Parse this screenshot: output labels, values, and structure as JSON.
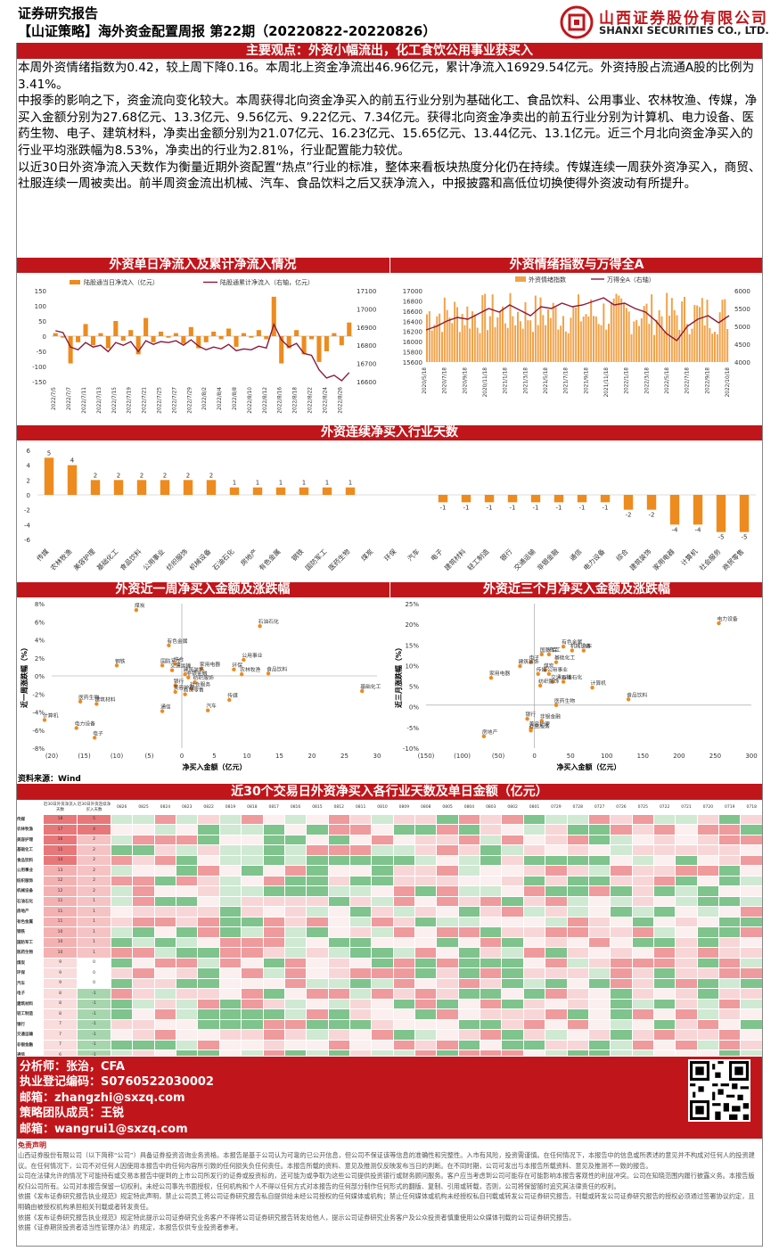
{
  "header": {
    "report_type": "证券研究报告",
    "report_title": "【山证策略】海外资金配置周报 第22期（20220822-20220826）",
    "company_cn": "山西证券股份有限公司",
    "company_en": "SHANXI SECURITIES CO., LTD."
  },
  "summary": {
    "title": "主要观点：外资小幅流出，化工食饮公用事业获买入",
    "paragraphs": [
      "本周外资情绪指数为0.42，较上周下降0.16。本周北上资金净流出46.96亿元，累计净流入16929.54亿元。外资持股占流通A股的比例为3.41%。",
      "中报季的影响之下，资金流向变化较大。本周获得北向资金净买入的前五行业分别为基础化工、食品饮料、公用事业、农林牧渔、传媒，净买入金额分别为27.68亿元、13.3亿元、9.56亿元、9.22亿元、7.34亿元。获得北向资金净卖出的前五行业分别为计算机、电力设备、医药生物、电子、建筑材料，净卖出金额分别为21.07亿元、16.23亿元、15.65亿元、13.44亿元、13.1亿元。近三个月北向资金净买入的行业平均涨跌幅为8.53%，净卖出的行业为2.81%，行业配置能力较优。",
      "以近30日外资净流入天数作为衡量近期外资配置“热点”行业的标准，整体来看板块热度分化仍在持续。传媒连续一周获外资净买入，商贸、社服连续一周被卖出。前半周资金流出机械、汽车、食品饮料之后又获净流入，中报披露和高低位切换使得外资波动有所提升。"
    ]
  },
  "section_titles": {
    "flow": "外资单日净流入及累计净流入情况",
    "sentiment": "外资情绪指数与万得全A",
    "consecutive": "外资连续净买入行业天数",
    "week_scatter": "外资近一周净买入金额及涨跌幅",
    "quarter_scatter": "外资近三个月净买入金额及涨跌幅",
    "heatmap": "近30个交易日外资净买入各行业天数及单日金额（亿元）"
  },
  "chart_data": [
    {
      "type": "bar",
      "name": "flow",
      "legend": [
        "陆股通当日净流入（亿元）",
        "陆股通累计净流入（右轴，亿元）"
      ],
      "y_ticks": [
        "150",
        "100",
        "50",
        "0",
        "-50",
        "-100",
        "-150"
      ],
      "y2_ticks": [
        "17100",
        "17000",
        "16900",
        "16800",
        "16700",
        "16600"
      ],
      "ylim": [
        -150,
        150
      ],
      "y2lim": [
        16600,
        17100
      ],
      "x_labels": [
        "2022/7/5",
        "2022/7/7",
        "2022/7/11",
        "2022/7/13",
        "2022/7/15",
        "2022/7/19",
        "2022/7/21",
        "2022/7/25",
        "2022/7/27",
        "2022/7/29",
        "2022/8/2",
        "2022/8/4",
        "2022/8/8",
        "2022/8/10",
        "2022/8/12",
        "2022/8/16",
        "2022/8/18",
        "2022/8/22",
        "2022/8/24",
        "2022/8/26"
      ],
      "bars": [
        10,
        -5,
        -90,
        -20,
        40,
        -30,
        10,
        -40,
        50,
        -15,
        20,
        -60,
        60,
        -20,
        15,
        -5,
        10,
        -25,
        30,
        -40,
        -20,
        15,
        -10,
        25,
        -35,
        10,
        -5,
        20,
        -10,
        130,
        -90,
        -40,
        20,
        -60,
        -10,
        -85,
        -50,
        10,
        -30,
        45
      ],
      "line": [
        16880,
        16870,
        16790,
        16775,
        16815,
        16790,
        16800,
        16765,
        16815,
        16800,
        16820,
        16765,
        16825,
        16805,
        16820,
        16815,
        16825,
        16800,
        16830,
        16795,
        16775,
        16790,
        16780,
        16805,
        16770,
        16780,
        16775,
        16795,
        16785,
        16915,
        16830,
        16790,
        16810,
        16755,
        16745,
        16665,
        16620,
        16635,
        16605,
        16650
      ]
    },
    {
      "type": "bar",
      "name": "sentiment",
      "legend": [
        "外资情绪指数",
        "万得全A（右轴）"
      ],
      "y_ticks": [
        "17000",
        "16800",
        "16600",
        "16400",
        "16200",
        "16000",
        "15800",
        "15600"
      ],
      "y2_ticks": [
        "6000",
        "5500",
        "5000",
        "4500",
        "4000"
      ],
      "x_labels": [
        "2020/5/18",
        "2020/7/18",
        "2020/9/18",
        "2020/11/18",
        "2021/1/18",
        "2021/3/18",
        "2021/5/18",
        "2021/7/18",
        "2021/9/18",
        "2021/11/18",
        "2022/1/18",
        "2022/3/18",
        "2022/5/18",
        "2022/7/18",
        "2022/9/18",
        "2022/10/18"
      ],
      "line": [
        4900,
        5000,
        5150,
        5250,
        5200,
        5350,
        5500,
        5400,
        5600,
        5450,
        5300,
        5550,
        5500,
        5650,
        5550,
        5600,
        5700,
        5800,
        5600,
        5650,
        5500,
        5400,
        5150,
        4800,
        4600,
        5000,
        5200,
        5300,
        5100,
        5300
      ]
    },
    {
      "type": "bar",
      "name": "consecutive",
      "y_ticks": [
        "6",
        "4",
        "2",
        "0",
        "-2",
        "-4",
        "-6"
      ],
      "ylim": [
        -6,
        6
      ],
      "categories": [
        "传媒",
        "农林牧渔",
        "美容护理",
        "基础化工",
        "食品饮料",
        "公用事业",
        "纺织服饰",
        "机械设备",
        "石油石化",
        "房地产",
        "有色金属",
        "钢铁",
        "国防军工",
        "医药生物",
        "煤炭",
        "环保",
        "汽车",
        "电子",
        "建筑材料",
        "轻工制造",
        "银行",
        "交通运输",
        "非银金融",
        "通信",
        "电力设备",
        "综合",
        "建筑装饰",
        "家用电器",
        "计算机",
        "社会服务",
        "商贸零售"
      ],
      "values": [
        5,
        4,
        2,
        2,
        2,
        2,
        2,
        2,
        1,
        1,
        1,
        1,
        1,
        1,
        0,
        0,
        0,
        -1,
        -1,
        -1,
        -1,
        -1,
        -1,
        -1,
        -1,
        -2,
        -2,
        -4,
        -4,
        -5,
        -5
      ]
    },
    {
      "type": "scatter",
      "name": "week",
      "xlabel": "净买入金额（亿元）",
      "ylabel": "近一周涨跌幅（%）",
      "x_ticks": [
        "(20)",
        "(15)",
        "(10)",
        "(5)",
        "0",
        "5",
        "10",
        "15",
        "20",
        "25",
        "30"
      ],
      "y_ticks": [
        "8%",
        "6%",
        "4%",
        "2%",
        "0%",
        "-2%",
        "-4%",
        "-6%",
        "-8%"
      ],
      "xlim": [
        -20,
        30
      ],
      "ylim": [
        -9,
        9
      ],
      "points": [
        {
          "label": "煤炭",
          "x": -7,
          "y": 8.2
        },
        {
          "label": "石油石化",
          "x": 12,
          "y": 6.2
        },
        {
          "label": "有色金属",
          "x": -2,
          "y": 3.8
        },
        {
          "label": "公用事业",
          "x": 9.5,
          "y": 2.0
        },
        {
          "label": "钢铁",
          "x": -10,
          "y": 1.3
        },
        {
          "label": "国防军工",
          "x": -3,
          "y": 1.3
        },
        {
          "label": "综合",
          "x": -1,
          "y": 1.5
        },
        {
          "label": "家用电器",
          "x": 3,
          "y": 0.9
        },
        {
          "label": "环保",
          "x": 8,
          "y": 0.8
        },
        {
          "label": "农林牧渔",
          "x": 9.2,
          "y": 0.2
        },
        {
          "label": "食品饮料",
          "x": 13.3,
          "y": 0.3
        },
        {
          "label": "交通运输",
          "x": -1.5,
          "y": 0.7
        },
        {
          "label": "建筑装饰",
          "x": 0.5,
          "y": 0.2
        },
        {
          "label": "非银金融",
          "x": 1,
          "y": -0.2
        },
        {
          "label": "纺织服饰",
          "x": 2,
          "y": -0.8
        },
        {
          "label": "银行",
          "x": -1,
          "y": -1.2
        },
        {
          "label": "社会服务",
          "x": 1.5,
          "y": -1.6
        },
        {
          "label": "商贸零售",
          "x": 0.5,
          "y": -2.3
        },
        {
          "label": "美容护理",
          "x": -1,
          "y": -2.0
        },
        {
          "label": "基础化工",
          "x": 27.7,
          "y": -1.9
        },
        {
          "label": "建筑材料",
          "x": -13.1,
          "y": -3.5
        },
        {
          "label": "医药生物",
          "x": -15.6,
          "y": -3.2
        },
        {
          "label": "通信",
          "x": -3,
          "y": -4.4
        },
        {
          "label": "汽车",
          "x": 4,
          "y": -4.3
        },
        {
          "label": "电力设备",
          "x": -16.2,
          "y": -6.5
        },
        {
          "label": "电子",
          "x": -13.4,
          "y": -7.7
        },
        {
          "label": "计算机",
          "x": -21.1,
          "y": -5.5
        },
        {
          "label": "传媒",
          "x": 7.3,
          "y": -3.0
        }
      ]
    },
    {
      "type": "scatter",
      "name": "quarter",
      "xlabel": "净买入金额（亿元）",
      "ylabel": "近三月涨跌幅（%）",
      "x_ticks": [
        "(150)",
        "(100)",
        "(50)",
        "0",
        "50",
        "100",
        "150",
        "200",
        "250",
        "300"
      ],
      "y_ticks": [
        "25%",
        "20%",
        "15%",
        "10%",
        "5%",
        "0%",
        "-5%",
        "-10%"
      ],
      "xlim": [
        -150,
        300
      ],
      "ylim": [
        -11,
        26
      ],
      "points": [
        {
          "label": "电力设备",
          "x": 255,
          "y": 21
        },
        {
          "label": "有色金属",
          "x": 40,
          "y": 15
        },
        {
          "label": "汽车",
          "x": 68,
          "y": 14
        },
        {
          "label": "环保",
          "x": 20,
          "y": 13
        },
        {
          "label": "机械设备",
          "x": 52,
          "y": 14
        },
        {
          "label": "国防军工",
          "x": 10,
          "y": 13
        },
        {
          "label": "基础化工",
          "x": 30,
          "y": 11
        },
        {
          "label": "电子",
          "x": -5,
          "y": 11
        },
        {
          "label": "建筑装饰",
          "x": -20,
          "y": 10
        },
        {
          "label": "煤炭",
          "x": 15,
          "y": 9
        },
        {
          "label": "传媒",
          "x": 5,
          "y": 8
        },
        {
          "label": "公用事业",
          "x": 20,
          "y": 8
        },
        {
          "label": "家用电器",
          "x": -60,
          "y": 7
        },
        {
          "label": "石油石化",
          "x": 40,
          "y": 6
        },
        {
          "label": "交通运输",
          "x": 25,
          "y": 6
        },
        {
          "label": "纺织服饰",
          "x": 8,
          "y": 5
        },
        {
          "label": "计算机",
          "x": 80,
          "y": 4.5
        },
        {
          "label": "食品饮料",
          "x": 130,
          "y": 1.5
        },
        {
          "label": "医药生物",
          "x": 30,
          "y": 0
        },
        {
          "label": "银行",
          "x": -10,
          "y": -3.5
        },
        {
          "label": "非银金融",
          "x": 10,
          "y": -4
        },
        {
          "label": "美容护理",
          "x": -5,
          "y": -6
        },
        {
          "label": "社会服务",
          "x": -5,
          "y": -6.5
        },
        {
          "label": "房地产",
          "x": -70,
          "y": -8
        }
      ]
    }
  ],
  "heatmap": {
    "col_head_1": "近30日外资净流入天数",
    "col_head_2": "近30日外资连续净买入天数",
    "dates": [
      "0826",
      "0825",
      "0824",
      "0823",
      "0822",
      "0819",
      "0818",
      "0817",
      "0816",
      "0815",
      "0812",
      "0811",
      "0810",
      "0809",
      "0808",
      "0805",
      "0804",
      "0803",
      "0802",
      "0801",
      "0729",
      "0728",
      "0727",
      "0726",
      "0725",
      "0722",
      "0721",
      "0720",
      "0719",
      "0718"
    ],
    "rows": [
      {
        "name": "传媒",
        "days": "18",
        "cons": "5"
      },
      {
        "name": "农林牧渔",
        "days": "17",
        "cons": "4"
      },
      {
        "name": "美容护理",
        "days": "16",
        "cons": "2"
      },
      {
        "name": "基础化工",
        "days": "15",
        "cons": "2"
      },
      {
        "name": "食品饮料",
        "days": "14",
        "cons": "2"
      },
      {
        "name": "公用事业",
        "days": "13",
        "cons": "2"
      },
      {
        "name": "纺织服饰",
        "days": "12",
        "cons": "2"
      },
      {
        "name": "机械设备",
        "days": "12",
        "cons": "2"
      },
      {
        "name": "石油石化",
        "days": "11",
        "cons": "1"
      },
      {
        "name": "房地产",
        "days": "11",
        "cons": "1"
      },
      {
        "name": "有色金属",
        "days": "11",
        "cons": "1"
      },
      {
        "name": "钢铁",
        "days": "10",
        "cons": "1"
      },
      {
        "name": "国防军工",
        "days": "10",
        "cons": "1"
      },
      {
        "name": "医药生物",
        "days": "10",
        "cons": "1"
      },
      {
        "name": "煤炭",
        "days": "9",
        "cons": "0"
      },
      {
        "name": "环保",
        "days": "9",
        "cons": "0"
      },
      {
        "name": "汽车",
        "days": "9",
        "cons": "0"
      },
      {
        "name": "电子",
        "days": "8",
        "cons": "-1"
      },
      {
        "name": "建筑材料",
        "days": "8",
        "cons": "-1"
      },
      {
        "name": "轻工制造",
        "days": "8",
        "cons": "-1"
      },
      {
        "name": "银行",
        "days": "7",
        "cons": "-1"
      },
      {
        "name": "交通运输",
        "days": "7",
        "cons": "-1"
      },
      {
        "name": "非银金融",
        "days": "7",
        "cons": "-1"
      },
      {
        "name": "通信",
        "days": "6",
        "cons": "-1"
      },
      {
        "name": "电力设备",
        "days": "6",
        "cons": "-1"
      },
      {
        "name": "综合",
        "days": "5",
        "cons": "-2"
      },
      {
        "name": "建筑装饰",
        "days": "5",
        "cons": "-2"
      },
      {
        "name": "家用电器",
        "days": "4",
        "cons": "-4"
      },
      {
        "name": "计算机",
        "days": "4",
        "cons": "-4"
      },
      {
        "name": "社会服务",
        "days": "3",
        "cons": "-5"
      },
      {
        "name": "商贸零售",
        "days": "3",
        "cons": "-5"
      }
    ]
  },
  "source": "资料来源：Wind",
  "analyst": {
    "name_line": "分析师：张治，CFA",
    "reg_line": "执业登记编码：S0760522030002",
    "email_line": "邮箱：zhangzhi@sxzq.com",
    "team_line": "策略团队成员：王锐",
    "email2_line": "邮箱：wangrui1@sxzq.com"
  },
  "disclaimer": {
    "title": "免责声明",
    "lines": [
      "山西证券股份有限公司（以下简称“公司”）具备证券投资咨询业务资格。本报告是基于公司认为可靠的已公开信息，但公司不保证该等信息的准确性和完整性。入市有风险，投资需谨慎。在任何情况下，本报告中的信息或所表述的意见并不构成对任何人的投资建议。在任何情况下，公司不对任何人因使用本报告中的任何内容所引致的任何损失负任何责任。本报告所载的资料、意见及推测仅反映发布当日的判断。在不同时期，公司可发出与本报告所载资料、意见及推测不一致的报告。",
      "公司在法律允许的情况下可能持有或交易本报告中提到的上市公司所发行的证券或投资标的，还可能为或争取为这些公司提供投资银行或财务顾问服务。客户应当考虑到公司可能存在可能影响本报告客观性的利益冲突。公司在知晓范围内履行披露义务。本报告版权归公司所有。公司对本报告保留一切权利。未经公司事先书面授权，任何机构和个人不得以任何方式对本报告的任何部分制作任何形式的翻版、复制、引用或转载，否则，公司将保留随时追究其法律责任的权利。",
      "依据《发布证券研究报告执业规范》规定特此声明，禁止公司员工将公司证券研究报告私自提供给未经公司授权的任何媒体或机构；禁止任何媒体或机构未经授权私自刊载或转发公司证券研究报告。刊载或转发公司证券研究报告的授权必须通过签署协议约定，且明确由被授权机构承担相关刊载或者转发责任。",
      "依据《发布证券研究报告执业规范》规定特此提示公司证券研究业务客户不得将公司证券研究报告转发给他人，提示公司证券研究业务客户及公众投资者慎重使用公众媒体刊载的公司证券研究报告。",
      "依据《证券期货投资者适当性管理办法》的规定，本报告仅供专业投资者参考。"
    ]
  }
}
